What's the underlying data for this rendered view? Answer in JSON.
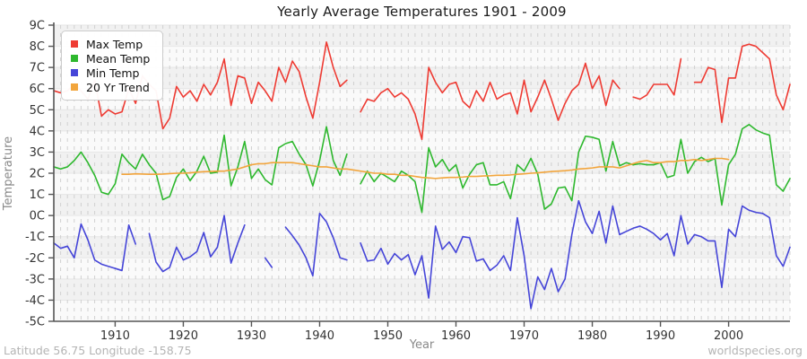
{
  "header": {
    "title": "Yearly Average Temperatures 1901 - 2009"
  },
  "axes": {
    "x_label": "Year",
    "y_label": "Temperature"
  },
  "footer": {
    "left": "Latitude 56.75 Longitude -158.75",
    "right": "worldspecies.org"
  },
  "style": {
    "band_colors": [
      "#f1f1f1",
      "#fafafa"
    ],
    "grid_dash_color": "#d0d0d0",
    "grid_line_color": "#e6e6e6",
    "axis_color": "#555555",
    "tick_label_color": "#333333"
  },
  "chart_data": {
    "type": "line",
    "title": "Yearly Average Temperatures 1901 - 2009",
    "xlabel": "Year",
    "ylabel": "Temperature",
    "x_start": 1901,
    "x_step": 1,
    "x_range": [
      1901,
      2009
    ],
    "ylim": [
      -5,
      9
    ],
    "x_ticks": [
      1910,
      1920,
      1930,
      1940,
      1950,
      1960,
      1970,
      1980,
      1990,
      2000
    ],
    "y_tick_values": [
      9,
      8,
      7,
      6,
      5,
      4,
      3,
      2,
      1,
      0,
      -1,
      -2,
      -3,
      -4,
      -5
    ],
    "y_tick_labels": [
      "9C",
      "8C",
      "7C",
      "6C",
      "5C",
      "4C",
      "3C",
      "2C",
      "1C",
      "0C",
      "-1C",
      "-2C",
      "-3C",
      "-4C",
      "-5C"
    ],
    "grid": "vertical dashed line per year, horizontal 1-degree alternating bands",
    "legend_position": "top-left",
    "series": [
      {
        "name": "Max Temp",
        "color": "#ee3b33",
        "values": [
          5.9,
          5.8,
          5.9,
          6.2,
          5.9,
          5.5,
          6.4,
          4.7,
          5.0,
          4.8,
          4.9,
          6.0,
          5.3,
          6.6,
          6.2,
          5.9,
          4.1,
          4.6,
          6.1,
          5.6,
          5.9,
          5.4,
          6.2,
          5.7,
          6.3,
          7.4,
          5.2,
          6.6,
          6.5,
          5.3,
          6.3,
          5.9,
          5.4,
          7.0,
          6.3,
          7.3,
          6.8,
          5.6,
          4.6,
          6.3,
          8.2,
          7.0,
          6.1,
          6.4,
          null,
          4.9,
          5.5,
          5.4,
          5.8,
          6.0,
          5.6,
          5.8,
          5.5,
          4.8,
          3.6,
          7.0,
          6.3,
          5.8,
          6.2,
          6.3,
          5.4,
          5.1,
          5.9,
          5.4,
          6.3,
          5.5,
          5.7,
          5.8,
          4.8,
          6.4,
          4.9,
          5.6,
          6.4,
          5.5,
          4.5,
          5.3,
          5.9,
          6.2,
          7.2,
          6.0,
          6.6,
          5.2,
          6.4,
          6.0,
          null,
          5.6,
          5.5,
          5.7,
          6.2,
          6.2,
          6.2,
          5.7,
          7.4,
          null,
          6.3,
          6.3,
          7.0,
          6.9,
          4.4,
          6.5,
          6.5,
          8.0,
          8.1,
          8.0,
          7.7,
          7.4,
          5.7,
          5.0,
          6.2
        ]
      },
      {
        "name": "Mean Temp",
        "color": "#2eb82e",
        "values": [
          2.3,
          2.2,
          2.3,
          2.6,
          3.0,
          2.5,
          1.9,
          1.1,
          1.0,
          1.5,
          2.9,
          2.5,
          2.2,
          2.9,
          2.4,
          2.0,
          0.75,
          0.9,
          1.8,
          2.2,
          1.65,
          2.1,
          2.8,
          2.0,
          2.05,
          3.8,
          1.4,
          2.3,
          3.5,
          1.75,
          2.2,
          1.7,
          1.45,
          3.2,
          3.4,
          3.5,
          2.9,
          2.4,
          1.4,
          2.6,
          4.2,
          2.6,
          1.9,
          2.9,
          null,
          1.5,
          2.1,
          1.6,
          2.0,
          1.8,
          1.6,
          2.1,
          1.9,
          1.6,
          0.15,
          3.2,
          2.3,
          2.65,
          2.1,
          2.4,
          1.3,
          1.95,
          2.4,
          2.5,
          1.45,
          1.45,
          1.6,
          0.8,
          2.4,
          2.1,
          2.7,
          1.95,
          0.3,
          0.55,
          1.3,
          1.35,
          0.7,
          3.0,
          3.75,
          3.7,
          3.6,
          2.1,
          3.5,
          2.35,
          2.5,
          2.4,
          2.45,
          2.4,
          2.4,
          2.5,
          1.8,
          1.9,
          3.6,
          2.0,
          2.55,
          2.75,
          2.55,
          2.7,
          0.5,
          2.4,
          2.9,
          4.1,
          4.3,
          4.05,
          3.9,
          3.8,
          1.45,
          1.15,
          1.75
        ]
      },
      {
        "name": "Min Temp",
        "color": "#4545d8",
        "values": [
          -1.3,
          -1.55,
          -1.45,
          -2.0,
          -0.4,
          -1.15,
          -2.1,
          -2.3,
          -2.4,
          -2.5,
          -2.6,
          -0.45,
          -1.35,
          null,
          -0.85,
          -2.2,
          -2.65,
          -2.45,
          -1.5,
          -2.1,
          -1.95,
          -1.7,
          -0.8,
          -1.95,
          -1.5,
          0.0,
          -2.25,
          -1.3,
          -0.45,
          null,
          null,
          -2.0,
          -2.45,
          null,
          -0.55,
          -0.95,
          -1.4,
          -2.0,
          -2.85,
          0.1,
          -0.3,
          -1.05,
          -2.0,
          -2.1,
          null,
          -1.3,
          -2.15,
          -2.1,
          -1.55,
          -2.3,
          -1.8,
          -2.1,
          -1.85,
          -2.8,
          -1.9,
          -3.9,
          -0.5,
          -1.6,
          -1.25,
          -1.75,
          -1.0,
          -1.05,
          -2.15,
          -2.05,
          -2.6,
          -2.35,
          -1.9,
          -2.6,
          -0.1,
          -1.9,
          -4.4,
          -2.9,
          -3.5,
          -2.5,
          -3.6,
          -3.0,
          -0.9,
          0.7,
          -0.3,
          -0.85,
          0.2,
          -1.3,
          0.45,
          -0.9,
          -0.75,
          -0.6,
          -0.5,
          -0.65,
          -0.85,
          -1.15,
          -0.85,
          -1.9,
          0.0,
          -1.35,
          -0.9,
          -1.0,
          -1.2,
          -1.2,
          -3.4,
          -0.65,
          -1.0,
          0.45,
          0.25,
          0.15,
          0.1,
          -0.1,
          -1.9,
          -2.4,
          -1.5
        ]
      },
      {
        "name": "20 Yr Trend",
        "color": "#f2a53c",
        "values": [
          null,
          null,
          null,
          null,
          null,
          null,
          null,
          null,
          null,
          null,
          1.95,
          1.95,
          1.97,
          1.96,
          1.95,
          1.95,
          1.96,
          1.98,
          2.0,
          2.0,
          2.02,
          2.05,
          2.07,
          2.08,
          2.1,
          2.1,
          2.15,
          2.2,
          2.3,
          2.4,
          2.45,
          2.45,
          2.5,
          2.5,
          2.5,
          2.5,
          2.45,
          2.4,
          2.35,
          2.3,
          2.3,
          2.25,
          2.2,
          2.2,
          2.15,
          2.1,
          2.05,
          2.0,
          2.0,
          1.95,
          1.95,
          1.9,
          1.9,
          1.85,
          1.8,
          1.78,
          1.75,
          1.78,
          1.8,
          1.8,
          1.82,
          1.85,
          1.85,
          1.87,
          1.88,
          1.9,
          1.9,
          1.92,
          1.95,
          1.97,
          2.0,
          2.02,
          2.05,
          2.08,
          2.1,
          2.12,
          2.15,
          2.2,
          2.22,
          2.25,
          2.3,
          2.3,
          2.3,
          2.25,
          2.35,
          2.45,
          2.55,
          2.6,
          2.5,
          2.5,
          2.55,
          2.55,
          2.6,
          2.6,
          2.65,
          2.6,
          2.65,
          2.7,
          2.7,
          2.65,
          null,
          null,
          null,
          null,
          null,
          null,
          null,
          null,
          null
        ]
      }
    ]
  }
}
